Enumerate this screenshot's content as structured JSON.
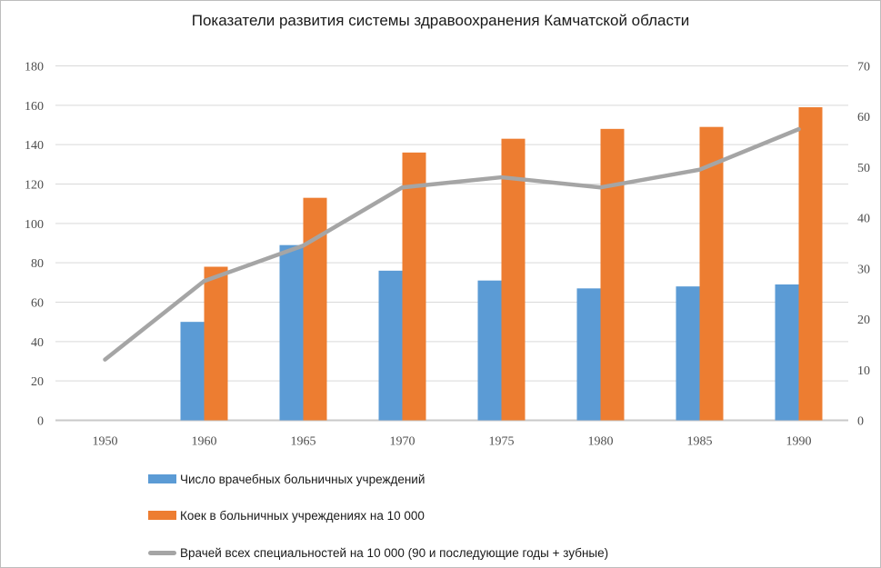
{
  "chart_data": {
    "type": "bar",
    "subtype": "combo-bar-line",
    "title": "Показатели развития системы здравоохранения Камчатской области",
    "categories": [
      "1950",
      "1960",
      "1965",
      "1970",
      "1975",
      "1980",
      "1985",
      "1990"
    ],
    "series": [
      {
        "name": "Число врачебных больничных учреждений",
        "type": "bar",
        "axis": "left",
        "color": "#5B9BD5",
        "values": [
          null,
          50,
          89,
          76,
          71,
          67,
          68,
          69
        ]
      },
      {
        "name": "Коек в больничных учреждениях на 10 000",
        "type": "bar",
        "axis": "left",
        "color": "#ED7D31",
        "values": [
          null,
          78,
          113,
          136,
          143,
          148,
          149,
          159
        ]
      },
      {
        "name": "Врачей всех специальностей на 10 000 (90 и последующие годы + зубные)",
        "type": "line",
        "axis": "right",
        "color": "#A5A5A5",
        "values": [
          12,
          27.5,
          34.5,
          46,
          48,
          46,
          49.5,
          57.5
        ]
      }
    ],
    "axes": {
      "left": {
        "min": 0,
        "max": 180,
        "ticks": [
          0,
          20,
          40,
          60,
          80,
          100,
          120,
          140,
          160,
          180
        ]
      },
      "right": {
        "min": 0,
        "max": 70,
        "ticks": [
          0,
          10,
          20,
          30,
          40,
          50,
          60,
          70
        ]
      }
    },
    "grid": true,
    "legend_position": "bottom-left",
    "colors": {
      "gridline": "#D9D9D9",
      "baseline": "#C9C9C9",
      "tick_text": "#4d4d4d",
      "title_text": "#1a1a1a",
      "background": "#FFFFFF"
    }
  }
}
